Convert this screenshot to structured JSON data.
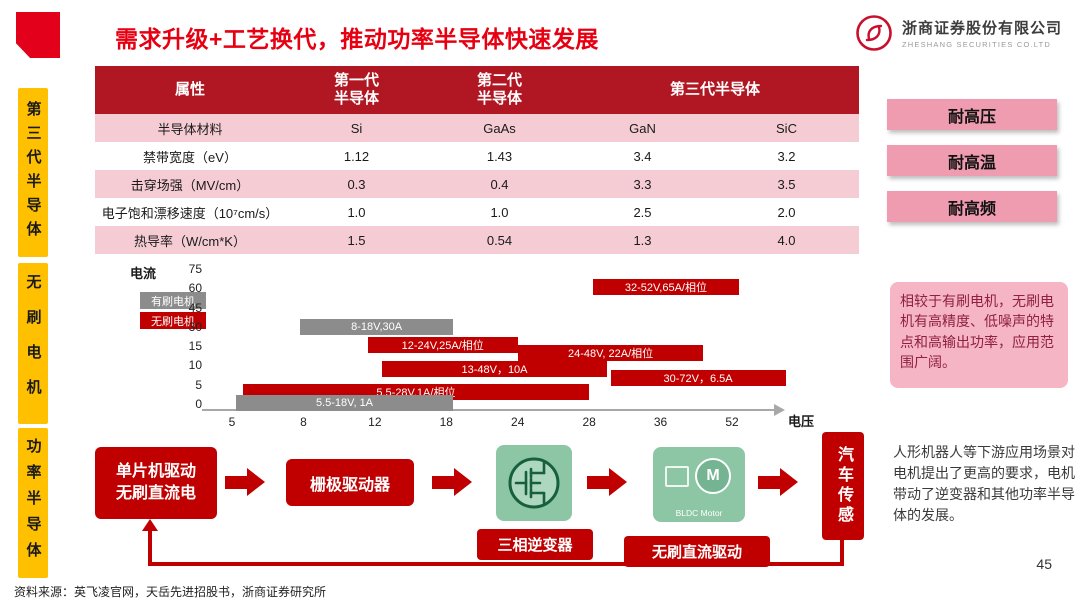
{
  "header": {
    "title": "需求升级+工艺换代，推动功率半导体快速发展",
    "logo_cn": "浙商证券股份有限公司",
    "logo_en": "ZHESHANG SECURITIES CO.LTD"
  },
  "sidebar": {
    "sections": [
      {
        "label": "第三代半导体"
      },
      {
        "label": "无刷电机"
      },
      {
        "label": "功率半导体"
      }
    ]
  },
  "table": {
    "col_headers": [
      "属性",
      "第一代\n半导体",
      "第二代\n半导体",
      "第三代半导体"
    ],
    "rows": [
      {
        "label": "半导体材料",
        "values": [
          "Si",
          "GaAs",
          "GaN",
          "SiC"
        ]
      },
      {
        "label": "禁带宽度（eV）",
        "values": [
          "1.12",
          "1.43",
          "3.4",
          "3.2"
        ]
      },
      {
        "label": "击穿场强（MV/cm）",
        "values": [
          "0.3",
          "0.4",
          "3.3",
          "3.5"
        ]
      },
      {
        "label": "电子饱和漂移速度（10⁷cm/s）",
        "values": [
          "1.0",
          "1.0",
          "2.5",
          "2.0"
        ]
      },
      {
        "label": "热导率（W/cm*K）",
        "values": [
          "1.5",
          "0.54",
          "1.3",
          "4.0"
        ]
      }
    ]
  },
  "badges": [
    {
      "label": "耐高压"
    },
    {
      "label": "耐高温"
    },
    {
      "label": "耐高频"
    }
  ],
  "chart_data": {
    "type": "bar",
    "orientation": "horizontal-gantt",
    "x_axis_label": "电压",
    "y_axis_label": "电流",
    "x_ticks": [
      "5",
      "8",
      "12",
      "18",
      "24",
      "28",
      "36",
      "52"
    ],
    "y_ticks": [
      "75",
      "60",
      "45",
      "30",
      "15",
      "10",
      "5",
      "0"
    ],
    "legend": [
      {
        "label": "有刷电机",
        "color": "#8c8c8c"
      },
      {
        "label": "无刷电机",
        "color": "#c00000"
      }
    ],
    "bars": [
      {
        "label": "32-52V,65A/相位",
        "series": "无刷电机",
        "voltage_range": [
          32,
          52
        ],
        "current": 65,
        "color": "#c00000",
        "x_start": 5.05,
        "x_end": 7.1,
        "row": 0.95
      },
      {
        "label": "8-18V,30A",
        "series": "有刷电机",
        "voltage_range": [
          8,
          18
        ],
        "current": 30,
        "color": "#8c8c8c",
        "x_start": 0.95,
        "x_end": 3.1,
        "row": 3.0
      },
      {
        "label": "12-24V,25A/相位",
        "series": "无刷电机",
        "voltage_range": [
          12,
          24
        ],
        "current": 25,
        "color": "#c00000",
        "x_start": 1.9,
        "x_end": 4.0,
        "row": 3.95
      },
      {
        "label": "24-48V, 22A/相位",
        "series": "无刷电机",
        "voltage_range": [
          24,
          48
        ],
        "current": 22,
        "color": "#c00000",
        "x_start": 4.0,
        "x_end": 6.6,
        "row": 4.35
      },
      {
        "label": "13-48V，10A",
        "series": "无刷电机",
        "voltage_range": [
          13,
          48
        ],
        "current": 10,
        "color": "#c00000",
        "x_start": 2.1,
        "x_end": 5.25,
        "row": 5.2
      },
      {
        "label": "30-72V，6.5A",
        "series": "无刷电机",
        "voltage_range": [
          30,
          72
        ],
        "current": 6.5,
        "color": "#c00000",
        "x_start": 5.3,
        "x_end": 7.75,
        "row": 5.65
      },
      {
        "label": "5.5-28V,1A/相位",
        "series": "无刷电机",
        "voltage_range": [
          5.5,
          28
        ],
        "current": 1,
        "color": "#c00000",
        "x_start": 0.15,
        "x_end": 5.0,
        "row": 6.4
      },
      {
        "label": "5.5-18V, 1A",
        "series": "有刷电机",
        "voltage_range": [
          5.5,
          18
        ],
        "current": 1,
        "color": "#8c8c8c",
        "x_start": 0.05,
        "x_end": 3.1,
        "row": 6.95
      }
    ]
  },
  "notes": {
    "brushless": "相较于有刷电机，无刷电机有高精度、低噪声的特点和高输出功率，应用范围广阔。",
    "downstream": "人形机器人等下游应用场景对电机提出了更高的要求，电机带动了逆变器和其他功率半导体的发展。"
  },
  "flow": {
    "box_mcu": "单片机驱动\n无刷直流电",
    "box_gate": "栅极驱动器",
    "label_inverter": "三相逆变器",
    "label_bldc": "无刷直流驱动",
    "box_auto": "汽车传感",
    "motor_letter": "M",
    "motor_caption": "BLDC Motor"
  },
  "footer": {
    "source": "资料来源：英飞凌官网，天岳先进招股书，浙商证券研究所",
    "page_number": "45"
  }
}
